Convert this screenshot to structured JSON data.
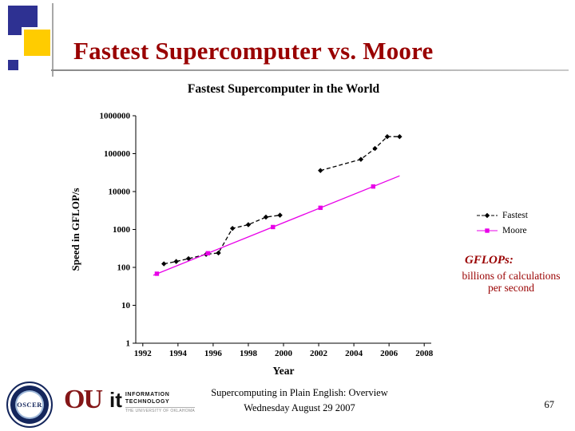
{
  "slide": {
    "title": "Fastest Supercomputer vs. Moore",
    "gflops_heading": "GFLOPs:",
    "gflops_body": "billions of calculations per second",
    "footer_line1": "Supercomputing in Plain English: Overview",
    "footer_line2": "Wednesday August 29 2007",
    "page_number": "67",
    "colors": {
      "dark_red": "#990000",
      "navy": "#2E3192",
      "yellow": "#FFCC00",
      "crimson": "#841617"
    }
  },
  "logos": {
    "oscer_label": "OSCER",
    "ou_label": "OU",
    "it_label": "it",
    "it_text_line1": "INFORMATION",
    "it_text_line2": "TECHNOLOGY",
    "it_sub": "THE UNIVERSITY OF OKLAHOMA"
  },
  "chart_data": {
    "type": "line",
    "title": "Fastest Supercomputer in the World",
    "xlabel": "Year",
    "ylabel": "Speed in GFLOP/s",
    "y_scale": "log",
    "xlim": [
      1991.6,
      2008.4
    ],
    "ylim": [
      1,
      1000000
    ],
    "x_ticks": [
      1992,
      1994,
      1996,
      1998,
      2000,
      2002,
      2004,
      2006,
      2008
    ],
    "y_ticks": [
      1,
      10,
      100,
      1000,
      10000,
      100000,
      1000000
    ],
    "grid": false,
    "legend_position": "right",
    "series": [
      {
        "name": "Fastest",
        "color": "#000000",
        "marker": "diamond",
        "line_style": "dashed",
        "segments": [
          [
            [
              1993.2,
              124
            ],
            [
              1993.9,
              143
            ],
            [
              1994.6,
              170
            ],
            [
              1995.6,
              220
            ],
            [
              1996.3,
              240
            ],
            [
              1997.1,
              1068
            ],
            [
              1998.0,
              1338
            ],
            [
              1999.0,
              2121
            ],
            [
              1999.8,
              2379
            ]
          ],
          [
            [
              2002.1,
              35860
            ],
            [
              2004.4,
              70720
            ],
            [
              2005.2,
              136800
            ],
            [
              2005.9,
              280600
            ],
            [
              2006.6,
              280600
            ]
          ]
        ],
        "marker_points": [
          [
            1993.2,
            124
          ],
          [
            1993.9,
            143
          ],
          [
            1994.6,
            170
          ],
          [
            1995.6,
            220
          ],
          [
            1996.3,
            240
          ],
          [
            1997.1,
            1068
          ],
          [
            1998.0,
            1338
          ],
          [
            1999.0,
            2121
          ],
          [
            1999.8,
            2379
          ],
          [
            2002.1,
            35860
          ],
          [
            2004.4,
            70720
          ],
          [
            2005.2,
            136800
          ],
          [
            2005.9,
            280600
          ],
          [
            2006.6,
            280600
          ]
        ]
      },
      {
        "name": "Moore",
        "color": "#E800E8",
        "marker": "square",
        "line_style": "solid",
        "segments": [
          [
            [
              1992.6,
              62
            ],
            [
              2006.6,
              26000
            ]
          ]
        ],
        "marker_points": [
          [
            1992.8,
            68
          ],
          [
            1995.7,
            236
          ],
          [
            1999.4,
            1160
          ],
          [
            2002.1,
            3730
          ],
          [
            2005.1,
            13600
          ]
        ]
      }
    ]
  }
}
